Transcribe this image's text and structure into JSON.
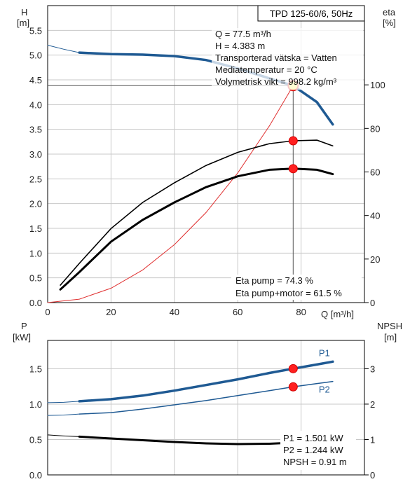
{
  "chart_data": [
    {
      "type": "line",
      "title": "TPD 125-60/6, 50Hz",
      "y_left_label": "H",
      "y_left_unit": "[m]",
      "y_right_label": "eta",
      "y_right_unit": "[%]",
      "xlabel": "Q [m³/h]",
      "xlim": [
        0,
        100
      ],
      "ylim_left": [
        0,
        6.0
      ],
      "ylim_right": [
        0,
        136.4
      ],
      "x_ticks": [
        "0",
        "20",
        "40",
        "60",
        "80"
      ],
      "y_left_ticks": [
        "0.0",
        "0.5",
        "1.0",
        "1.5",
        "2.0",
        "2.5",
        "3.0",
        "3.5",
        "4.0",
        "4.5",
        "5.0",
        "5.5"
      ],
      "y_right_ticks": [
        "0",
        "20",
        "40",
        "60",
        "80",
        "100"
      ],
      "grid": true,
      "series": [
        {
          "key": "H",
          "axis": "left",
          "color": "#1f5a93",
          "x": [
            10,
            20,
            30,
            40,
            50,
            60,
            70,
            77.5,
            85,
            90
          ],
          "y": [
            5.05,
            5.02,
            5.01,
            4.98,
            4.9,
            4.73,
            4.53,
            4.383,
            4.05,
            3.6
          ]
        },
        {
          "key": "H-ext",
          "axis": "left",
          "color": "#1f5a93",
          "x": [
            0,
            5,
            10
          ],
          "y": [
            5.2,
            5.12,
            5.05
          ]
        },
        {
          "key": "system-curve",
          "axis": "left",
          "color": "#e03030",
          "x": [
            0,
            10,
            20,
            30,
            40,
            50,
            60,
            70,
            77.5
          ],
          "y": [
            0,
            0.07,
            0.29,
            0.66,
            1.17,
            1.82,
            2.62,
            3.57,
            4.383
          ]
        },
        {
          "key": "eta-pump",
          "axis": "right",
          "color": "#000000",
          "x": [
            4,
            10,
            20,
            30,
            40,
            50,
            60,
            70,
            77.5,
            85,
            90
          ],
          "y": [
            8,
            18,
            34,
            46,
            55,
            63,
            69,
            73,
            74.3,
            74.6,
            72
          ]
        },
        {
          "key": "eta-pump-motor",
          "axis": "right",
          "color": "#000000",
          "x": [
            4,
            10,
            20,
            30,
            40,
            50,
            60,
            70,
            77.5,
            85,
            90
          ],
          "y": [
            6,
            14,
            28,
            38,
            46,
            53,
            58,
            61,
            61.5,
            61,
            59
          ]
        }
      ],
      "operating_point": {
        "q": 77.5,
        "h": 4.383,
        "eta_pump": 74.3,
        "eta_total": 61.5
      },
      "annotations": [
        "Q = 77.5 m³/h",
        "H = 4.383 m",
        "Transporterad vätska = Vatten",
        "Mediatemperatur = 20 °C",
        "Volymetrisk vikt = 998.2 kg/m³"
      ],
      "eta_annotations": [
        "Eta pump = 74.3 %",
        "Eta pump+motor = 61.5 %"
      ]
    },
    {
      "type": "line",
      "y_left_label": "P",
      "y_left_unit": "[kW]",
      "y_right_label": "NPSH",
      "y_right_unit": "[m]",
      "xlim": [
        0,
        100
      ],
      "ylim_left": [
        0,
        1.9
      ],
      "ylim_right": [
        0,
        3.8
      ],
      "y_left_ticks": [
        "0.0",
        "0.5",
        "1.0",
        "1.5"
      ],
      "y_right_ticks": [
        "0",
        "1",
        "2",
        "3"
      ],
      "grid": true,
      "series": [
        {
          "name": "P1",
          "key": "P1",
          "axis": "left",
          "color": "#1f5a93",
          "x": [
            10,
            20,
            30,
            40,
            50,
            60,
            70,
            77.5,
            85,
            90
          ],
          "y": [
            1.04,
            1.07,
            1.12,
            1.19,
            1.27,
            1.35,
            1.44,
            1.501,
            1.56,
            1.6
          ]
        },
        {
          "key": "P1-ext",
          "axis": "left",
          "color": "#1f5a93",
          "x": [
            0,
            5,
            10
          ],
          "y": [
            1.02,
            1.025,
            1.04
          ]
        },
        {
          "name": "P2",
          "key": "P2",
          "axis": "left",
          "color": "#1f5a93",
          "x": [
            10,
            20,
            30,
            40,
            50,
            60,
            70,
            77.5,
            85,
            90
          ],
          "y": [
            0.86,
            0.88,
            0.93,
            0.99,
            1.05,
            1.12,
            1.19,
            1.244,
            1.29,
            1.32
          ]
        },
        {
          "key": "P2-ext",
          "axis": "left",
          "color": "#1f5a93",
          "x": [
            0,
            5,
            10
          ],
          "y": [
            0.84,
            0.845,
            0.86
          ]
        },
        {
          "key": "NPSH",
          "axis": "right",
          "color": "#000000",
          "x": [
            10,
            20,
            30,
            40,
            50,
            60,
            70,
            77.5,
            85,
            90
          ],
          "y": [
            1.08,
            1.03,
            0.98,
            0.93,
            0.89,
            0.87,
            0.88,
            0.91,
            1.0,
            1.1
          ]
        },
        {
          "key": "NPSH-ext",
          "axis": "right",
          "color": "#000000",
          "x": [
            0,
            5,
            10
          ],
          "y": [
            1.13,
            1.1,
            1.08
          ]
        }
      ],
      "operating_point": {
        "q": 77.5,
        "p1": 1.501,
        "p2": 1.244,
        "npsh": 0.91
      },
      "annotations": [
        "P1 = 1.501 kW",
        "P2 = 1.244 kW",
        "NPSH = 0.91 m"
      ]
    }
  ]
}
